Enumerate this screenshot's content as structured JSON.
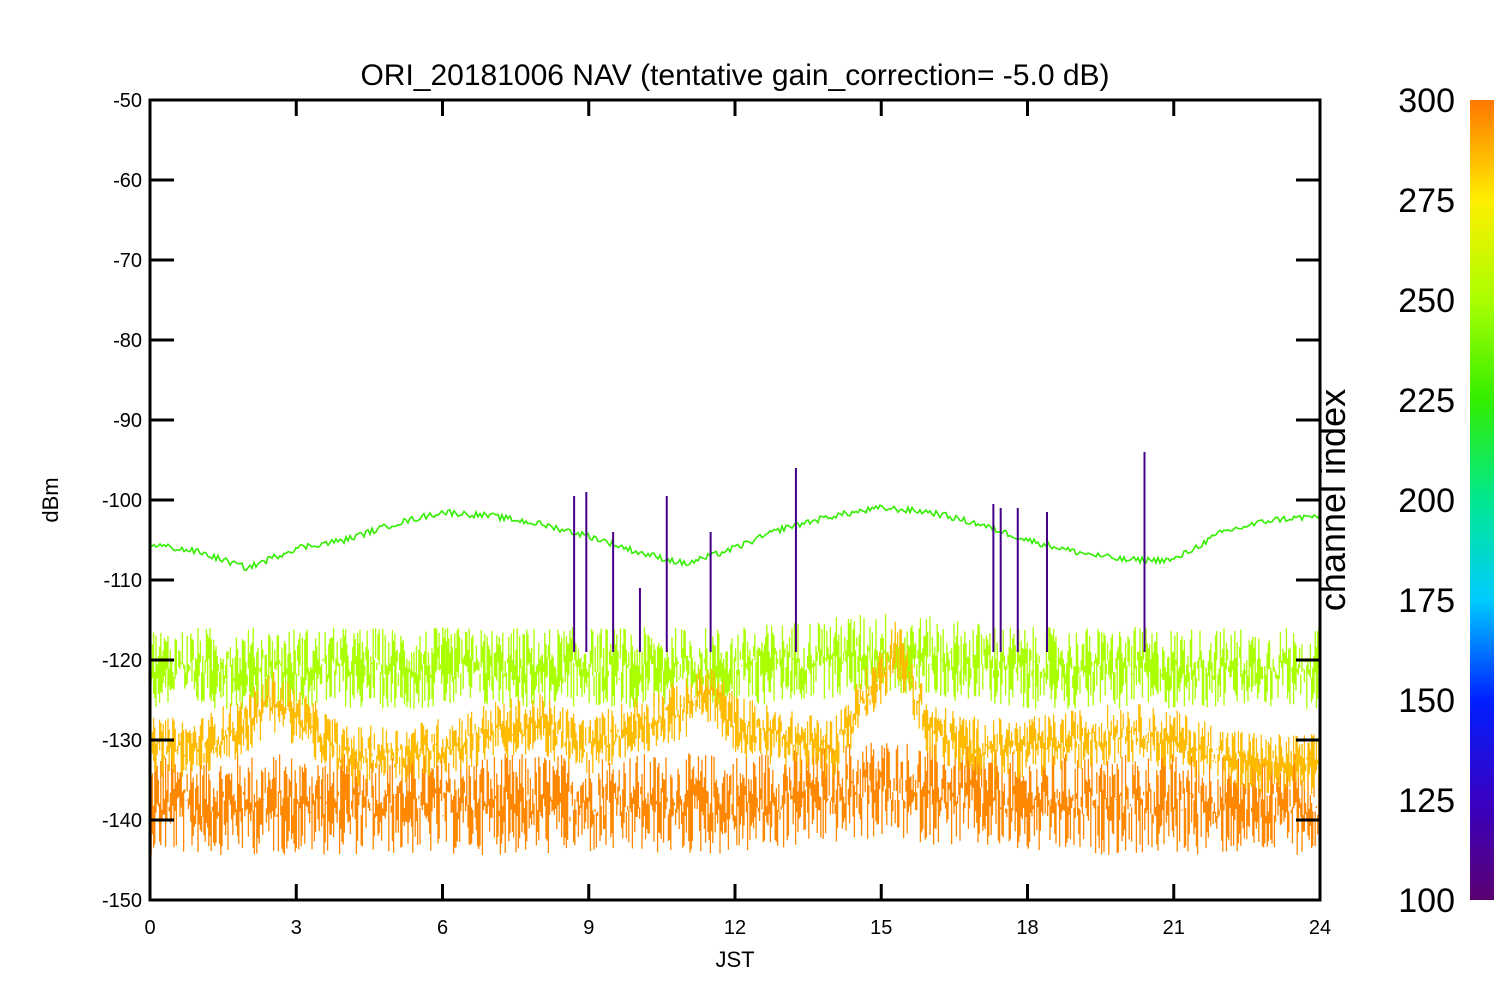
{
  "chart_data": {
    "type": "line",
    "title": "ORI_20181006 NAV (tentative gain_correction= -5.0 dB)",
    "xlabel": "JST",
    "ylabel": "dBm",
    "xlim": [
      0,
      24
    ],
    "ylim": [
      -150,
      -50
    ],
    "xticks": [
      "0",
      "3",
      "6",
      "9",
      "12",
      "15",
      "18",
      "21",
      "24"
    ],
    "yticks": [
      "-50",
      "-60",
      "-70",
      "-80",
      "-90",
      "-100",
      "-110",
      "-120",
      "-130",
      "-140",
      "-150"
    ],
    "grid": false,
    "colorbar": {
      "label": "channel index",
      "range": [
        100,
        300
      ],
      "ticks": [
        "100",
        "125",
        "150",
        "175",
        "200",
        "225",
        "250",
        "275",
        "300"
      ],
      "colormap": "rainbow: purple (100) → blue → cyan → green → yellow → orange (300)"
    },
    "series": [
      {
        "color": "#33ee00",
        "x": [
          0,
          1,
          2,
          3,
          4,
          5,
          6,
          7,
          8,
          9,
          10,
          11,
          12,
          13,
          14,
          15,
          16,
          17,
          18,
          19,
          20,
          21,
          22,
          23,
          24
        ],
        "values": [
          -105.5,
          -106.5,
          -108.5,
          -106,
          -105,
          -103,
          -101.5,
          -102,
          -103,
          -104.5,
          -106.5,
          -108,
          -106,
          -103.5,
          -102,
          -101,
          -101.5,
          -103,
          -105,
          -106.5,
          -107.5,
          -107.5,
          -104,
          -102.5,
          -102
        ]
      },
      {
        "color": "#aaff00",
        "x": [
          0,
          3,
          6,
          9,
          12,
          15,
          18,
          21,
          24
        ],
        "values": [
          -121,
          -121,
          -121,
          -121,
          -121,
          -119,
          -121,
          -121,
          -121
        ],
        "spread": 4
      },
      {
        "color": "#ffbb00",
        "x": [
          0,
          1,
          2,
          2.5,
          3,
          4,
          5,
          6,
          7,
          8,
          9,
          10,
          11,
          11.5,
          12,
          13,
          14,
          15,
          15.3,
          16,
          17,
          18,
          19,
          20,
          21,
          22,
          23,
          24
        ],
        "values": [
          -131,
          -131,
          -128,
          -125,
          -127,
          -132,
          -132,
          -131,
          -129,
          -128,
          -131,
          -128,
          -126,
          -124,
          -128,
          -130,
          -131,
          -122,
          -118,
          -129,
          -131,
          -131,
          -130,
          -129,
          -130,
          -132,
          -133,
          -133
        ],
        "spread": 3
      },
      {
        "color": "#ff8800",
        "x": [
          0,
          3,
          6,
          9,
          12,
          15,
          18,
          21,
          24
        ],
        "values": [
          -138,
          -138,
          -138,
          -138,
          -138,
          -136,
          -138,
          -138,
          -138
        ],
        "spread": 5
      }
    ],
    "spikes": [
      {
        "x": 8.7,
        "top": -99.5,
        "color": "#440088"
      },
      {
        "x": 8.95,
        "top": -99,
        "color": "#440088"
      },
      {
        "x": 9.5,
        "top": -104,
        "color": "#440088"
      },
      {
        "x": 10.05,
        "top": -111,
        "color": "#440088"
      },
      {
        "x": 10.6,
        "top": -99.5,
        "color": "#440088"
      },
      {
        "x": 11.5,
        "top": -104,
        "color": "#440088"
      },
      {
        "x": 13.25,
        "top": -96,
        "color": "#440088"
      },
      {
        "x": 17.3,
        "top": -100.5,
        "color": "#440088"
      },
      {
        "x": 17.45,
        "top": -101,
        "color": "#440088"
      },
      {
        "x": 17.8,
        "top": -101,
        "color": "#440088"
      },
      {
        "x": 18.4,
        "top": -101.5,
        "color": "#440088"
      },
      {
        "x": 20.4,
        "top": -94,
        "color": "#440088"
      }
    ]
  }
}
